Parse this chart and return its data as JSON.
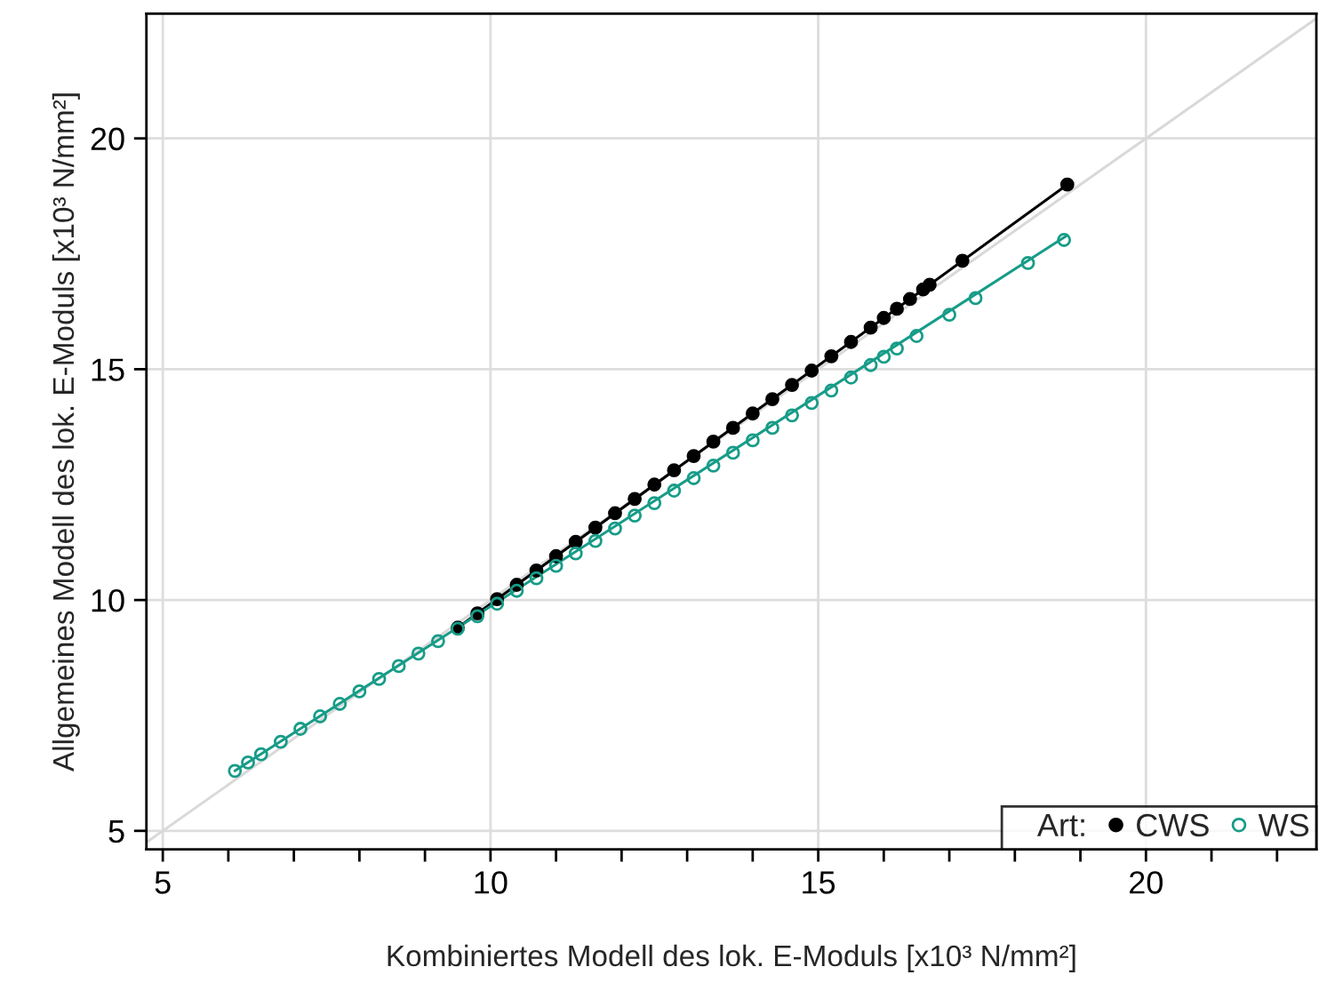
{
  "chart_data": {
    "type": "scatter",
    "xlabel": "Kombiniertes Modell des lok. E-Moduls [x10³ N/mm²]",
    "ylabel": "Allgemeines Modell des lok. E-Moduls [x10³ N/mm²]",
    "legend_title": "Art:",
    "legend": "bottom right",
    "grid": true,
    "xlim": [
      4.75,
      22.6
    ],
    "ylim": [
      4.6,
      22.7
    ],
    "xticks": [
      5,
      {
        "value": 6,
        "label": null
      },
      {
        "value": 7,
        "label": null
      },
      {
        "value": 8,
        "label": null
      },
      {
        "value": 9,
        "label": null
      },
      10,
      {
        "value": 11,
        "label": null
      },
      {
        "value": 12,
        "label": null
      },
      {
        "value": 13,
        "label": null
      },
      {
        "value": 14,
        "label": null
      },
      15,
      {
        "value": 16,
        "label": null
      },
      {
        "value": 17,
        "label": null
      },
      {
        "value": 18,
        "label": null
      },
      {
        "value": 19,
        "label": null
      },
      20,
      {
        "value": 21,
        "label": null
      },
      {
        "value": 22,
        "label": null
      }
    ],
    "yticks": [
      5,
      10,
      15,
      20
    ],
    "series": [
      {
        "type": "line",
        "color": "#d9d9d9",
        "x": [
          4.75,
          22.6
        ],
        "values": [
          4.75,
          22.6
        ]
      },
      {
        "name": "CWS",
        "marker": "circle",
        "color": "#000000",
        "x": [
          9.5,
          9.8,
          10.1,
          10.4,
          10.7,
          11.0,
          11.3,
          11.6,
          11.9,
          12.2,
          12.5,
          12.8,
          13.1,
          13.4,
          13.7,
          14.0,
          14.3,
          14.6,
          14.9,
          15.2,
          15.5,
          15.8,
          16.0,
          16.2,
          16.4,
          16.6,
          16.7,
          17.2,
          18.8
        ],
        "values": [
          9.4,
          9.71,
          10.02,
          10.33,
          10.64,
          10.95,
          11.26,
          11.57,
          11.88,
          12.19,
          12.5,
          12.81,
          13.12,
          13.43,
          13.73,
          14.04,
          14.35,
          14.66,
          14.97,
          15.28,
          15.59,
          15.9,
          16.11,
          16.31,
          16.52,
          16.73,
          16.83,
          17.35,
          19.0
        ]
      },
      {
        "type": "line",
        "color": "#000000",
        "x": [
          9.5,
          18.8
        ],
        "values": [
          9.4,
          19.0
        ]
      },
      {
        "name": "WS",
        "marker": "circle",
        "color": "#179c88",
        "x": [
          6.1,
          6.3,
          6.5,
          6.8,
          7.1,
          7.4,
          7.7,
          8.0,
          8.3,
          8.6,
          8.9,
          9.2,
          9.5,
          9.8,
          10.1,
          10.4,
          10.7,
          11.0,
          11.3,
          11.6,
          11.9,
          12.2,
          12.5,
          12.8,
          13.1,
          13.4,
          13.7,
          14.0,
          14.3,
          14.6,
          14.9,
          15.2,
          15.5,
          15.8,
          16.0,
          16.2,
          16.5,
          17.0,
          17.4,
          18.2,
          18.75
        ],
        "values": [
          6.3,
          6.48,
          6.66,
          6.93,
          7.21,
          7.48,
          7.75,
          8.02,
          8.29,
          8.57,
          8.84,
          9.11,
          9.38,
          9.65,
          9.92,
          10.2,
          10.47,
          10.74,
          11.01,
          11.28,
          11.55,
          11.83,
          12.1,
          12.37,
          12.64,
          12.91,
          13.19,
          13.46,
          13.73,
          14.0,
          14.27,
          14.54,
          14.82,
          15.09,
          15.27,
          15.45,
          15.72,
          16.18,
          16.54,
          17.3,
          17.8
        ]
      },
      {
        "type": "line",
        "color": "#179c88",
        "x": [
          6.1,
          18.8
        ],
        "values": [
          6.3,
          17.9
        ]
      }
    ]
  }
}
